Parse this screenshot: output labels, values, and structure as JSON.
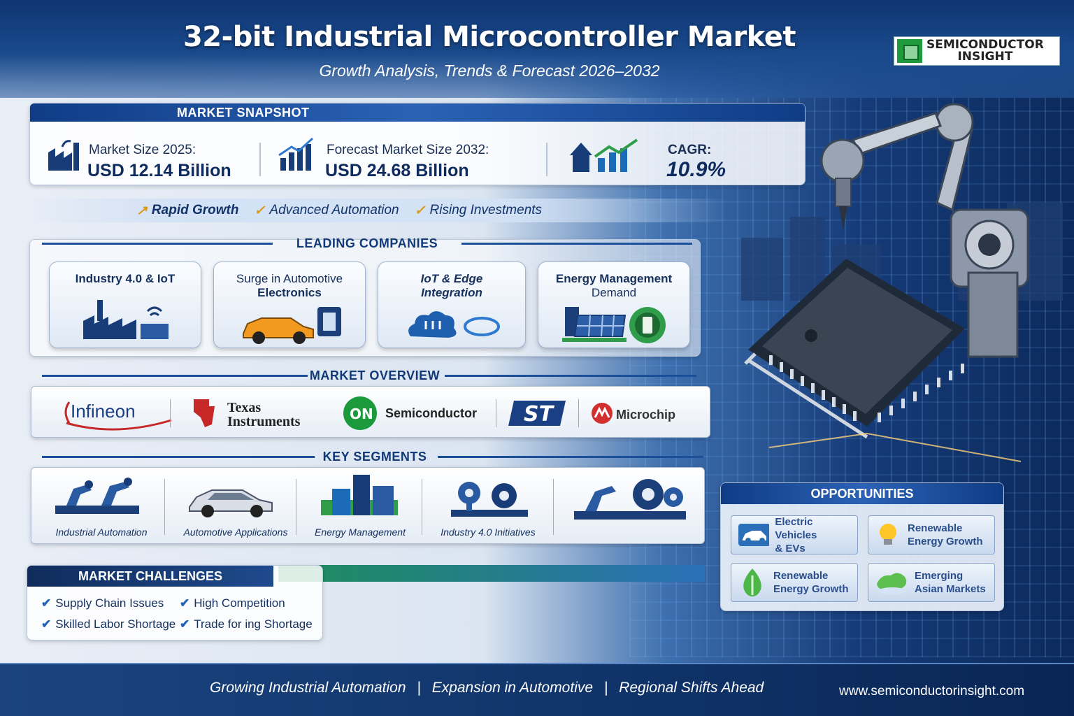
{
  "header": {
    "title": "32-bit Industrial Microcontroller Market",
    "subtitle": "Growth Analysis, Trends & Forecast 2026–2032",
    "logo_line1": "SEMICONDUCTOR",
    "logo_line2": "INSIGHT"
  },
  "snapshot": {
    "title": "MARKET SNAPSHOT",
    "kpis": [
      {
        "label": "Market Size 2025:",
        "value": "USD 12.14 Billion",
        "icon": "factory-icon"
      },
      {
        "label": "Forecast Market Size 2032:",
        "value": "USD 24.68 Billion",
        "icon": "growth-chart-icon"
      },
      {
        "label": "CAGR:",
        "value": "10.9%",
        "icon": "trend-arrow-icon"
      }
    ],
    "tags": [
      "Rapid Growth",
      "Advanced Automation",
      "Rising Investments"
    ]
  },
  "leading_companies": {
    "title": "LEADING COMPANIES",
    "cards": [
      {
        "line1": "Industry 4.0 & IoT",
        "line2": "",
        "icon": "smart-factory-icon"
      },
      {
        "line1": "Surge in Automotive",
        "line2": "Electronics",
        "icon": "car-chip-icon"
      },
      {
        "line1": "IoT & Edge",
        "line2": "Integration",
        "icon": "cloud-network-icon"
      },
      {
        "line1": "Energy Management",
        "line2": "Demand",
        "icon": "solar-battery-icon"
      }
    ]
  },
  "overview": {
    "title": "MARKET OVERVIEW",
    "brands": [
      "Infineon",
      "Texas",
      "Instruments",
      "ON",
      "Semiconductor",
      "ST",
      "Microchip"
    ]
  },
  "segments": {
    "title": "KEY SEGMENTS",
    "items": [
      {
        "label": "Industrial Automation",
        "icon": "robot-arm-icon"
      },
      {
        "label": "Automotive Applications",
        "icon": "car-icon"
      },
      {
        "label": "Energy Management",
        "icon": "buildings-icon"
      },
      {
        "label": "Industry 4.0 Initiatives",
        "icon": "gears-icon"
      },
      {
        "label": "",
        "icon": "robot-gears-icon"
      }
    ]
  },
  "challenges": {
    "title": "MARKET CHALLENGES",
    "items": [
      "Supply Chain Issues",
      "High Competition",
      "Skilled Labor Shortage",
      "Trade for ing Shortage"
    ]
  },
  "opportunities": {
    "title": "OPPORTUNITIES",
    "items": [
      {
        "line1": "Electric Vehicles",
        "line2": "& EVs",
        "icon": "ev-car-icon"
      },
      {
        "line1": "Renewable",
        "line2": "Energy Growth",
        "icon": "lightbulb-icon"
      },
      {
        "line1": "Renewable",
        "line2": "Energy Growth",
        "icon": "leaf-drop-icon"
      },
      {
        "line1": "Emerging",
        "line2": "Asian Markets",
        "icon": "asia-map-icon"
      }
    ]
  },
  "footer": {
    "points": [
      "Growing Industrial Automation",
      "Expansion in Automotive",
      "Regional Shifts Ahead"
    ],
    "url": "www.semiconductorinsight.com"
  }
}
